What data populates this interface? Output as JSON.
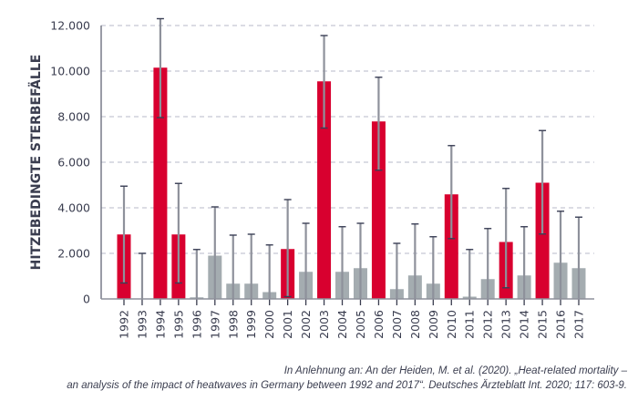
{
  "chart_data": {
    "type": "bar",
    "title": "",
    "xlabel": "",
    "ylabel": "HITZEBEDINGTE STERBEFÄLLE",
    "ylim": [
      0,
      12000
    ],
    "yticks": [
      0,
      2000,
      4000,
      6000,
      8000,
      10000,
      12000
    ],
    "ytick_labels": [
      "0",
      "2.000",
      "4.000",
      "6.000",
      "8.000",
      "10.000",
      "12.000"
    ],
    "grid": "horizontal dashed",
    "categories": [
      "1992",
      "1993",
      "1994",
      "1995",
      "1996",
      "1997",
      "1998",
      "1999",
      "2000",
      "2001",
      "2002",
      "2003",
      "2004",
      "2005",
      "2006",
      "2007",
      "2008",
      "2009",
      "2010",
      "2011",
      "2012",
      "2013",
      "2014",
      "2015",
      "2016",
      "2017"
    ],
    "values": [
      2830,
      0,
      10150,
      2830,
      70,
      1900,
      670,
      670,
      300,
      2190,
      1190,
      9550,
      1190,
      1350,
      7790,
      430,
      1030,
      670,
      4590,
      100,
      870,
      2500,
      1030,
      5100,
      1590,
      1350
    ],
    "error_low": [
      700,
      0,
      7960,
      700,
      0,
      0,
      0,
      0,
      0,
      100,
      0,
      7500,
      0,
      0,
      5650,
      0,
      0,
      0,
      2650,
      0,
      0,
      490,
      0,
      2850,
      0,
      0
    ],
    "error_high": [
      4950,
      2000,
      12300,
      5070,
      2170,
      4040,
      2800,
      2840,
      2370,
      4360,
      3320,
      11560,
      3170,
      3320,
      9730,
      2440,
      3290,
      2730,
      6730,
      2170,
      3090,
      4850,
      3170,
      7390,
      3850,
      3590
    ],
    "highlighted": [
      true,
      false,
      true,
      true,
      false,
      false,
      false,
      false,
      false,
      true,
      false,
      true,
      false,
      false,
      true,
      false,
      false,
      false,
      true,
      false,
      false,
      true,
      false,
      true,
      false,
      false
    ],
    "colors": {
      "highlight": "#d8002f",
      "normal": "#a4acb0",
      "error_line": "#8e919b",
      "error_cap": "#3a3f55",
      "axis": "#8e919b",
      "grid": "#cfd0dc"
    }
  },
  "caption": {
    "line1": "In Anlehnung an:  An der Heiden, M. et al. (2020). „Heat-related mortality –",
    "line2": "an analysis of the impact of heatwaves in Germany between 1992 and 2017“. Deutsches Ärzteblatt Int. 2020; 117: 603-9."
  }
}
